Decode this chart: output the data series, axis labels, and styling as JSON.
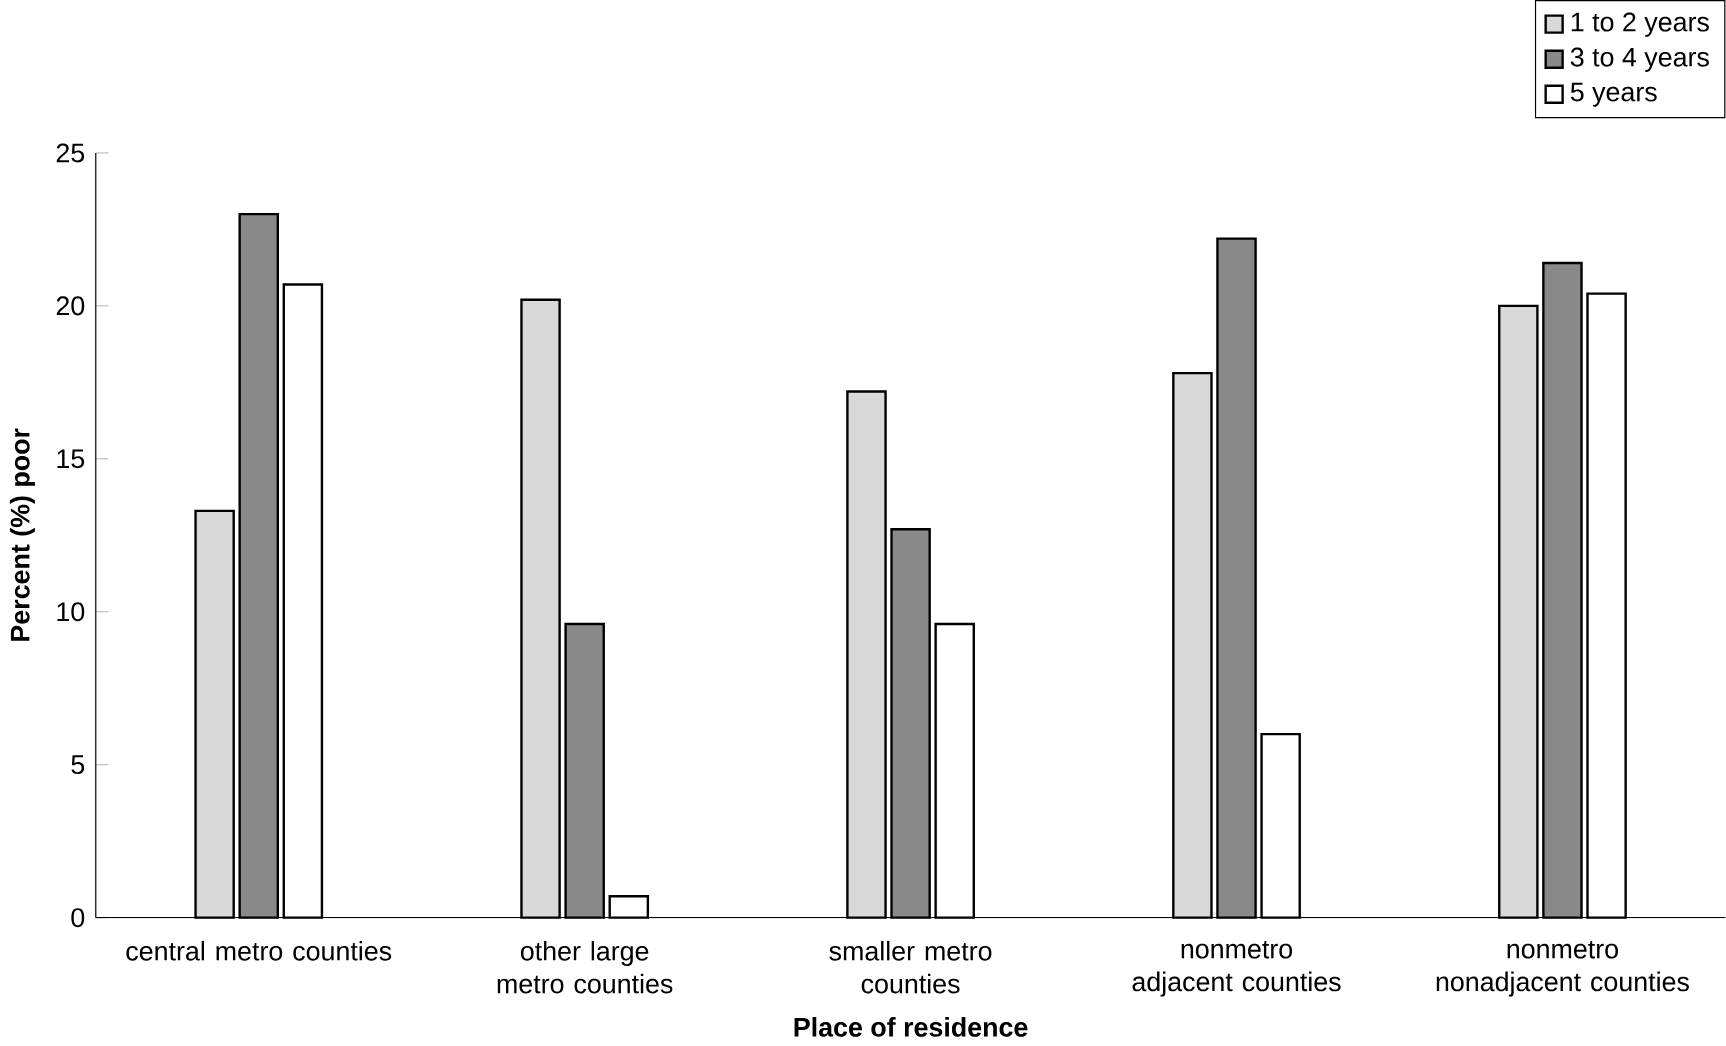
{
  "chart_data": {
    "type": "bar",
    "xlabel": "Place of residence",
    "ylabel": "Percent (%) poor",
    "categories": [
      "central metro counties",
      "other large metro counties",
      "smaller metro counties",
      "nonmetro adjacent counties",
      "nonmetro nonadjacent counties"
    ],
    "series": [
      {
        "name": "1 to 2 years",
        "color": "#d9d9d9",
        "values": [
          13.3,
          20.2,
          17.2,
          17.8,
          20.0
        ]
      },
      {
        "name": "3 to 4 years",
        "color": "#898989",
        "values": [
          23.0,
          9.6,
          12.7,
          22.2,
          21.4
        ]
      },
      {
        "name": "5 years",
        "color": "#ffffff",
        "values": [
          20.7,
          0.7,
          9.6,
          6.0,
          20.4
        ]
      }
    ],
    "ylim": [
      0,
      25
    ],
    "yticks": [
      0,
      5,
      10,
      15,
      20,
      25
    ],
    "grid": false,
    "legend": "top right"
  }
}
